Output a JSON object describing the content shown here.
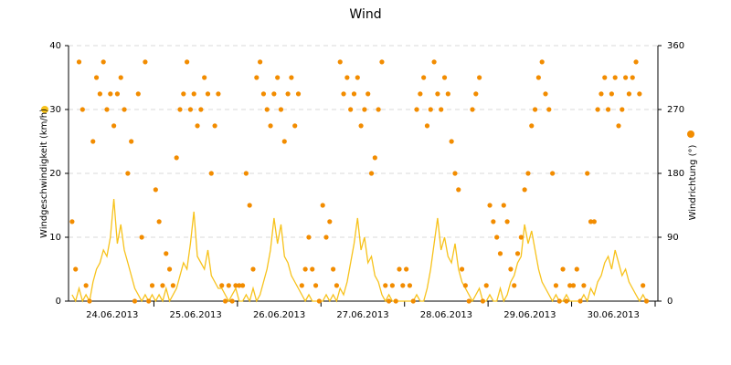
{
  "chart_data": {
    "type": "line-scatter",
    "title": "Wind",
    "categories": [
      "24.06.2013",
      "25.06.2013",
      "26.06.2013",
      "27.06.2013",
      "28.06.2013",
      "29.06.2013",
      "30.06.2013"
    ],
    "ylim": [
      0,
      40
    ],
    "yticks": [
      0,
      10,
      20,
      30,
      40
    ],
    "y2lim": [
      0,
      360
    ],
    "y2ticks": [
      0,
      90,
      180,
      270,
      360
    ],
    "grid": true,
    "series": [
      {
        "name": "Windgeschwindigkeit (km/h)",
        "color": "#f7c21b",
        "type": "line",
        "values": [
          [
            1,
            0,
            2,
            0,
            1,
            0,
            3,
            5,
            6,
            8,
            7,
            10,
            16,
            9,
            12,
            8,
            6,
            4,
            2,
            1,
            0,
            1,
            0,
            1
          ],
          [
            0,
            1,
            0,
            2,
            0,
            1,
            2,
            4,
            6,
            5,
            9,
            14,
            7,
            6,
            5,
            8,
            4,
            3,
            2,
            2,
            1,
            0,
            1,
            2
          ],
          [
            0,
            0,
            1,
            0,
            2,
            0,
            1,
            3,
            5,
            8,
            13,
            9,
            12,
            7,
            6,
            4,
            3,
            2,
            1,
            0,
            1,
            0,
            0,
            0
          ],
          [
            0,
            1,
            0,
            1,
            0,
            2,
            1,
            3,
            6,
            9,
            13,
            8,
            10,
            6,
            7,
            4,
            3,
            1,
            0,
            1,
            0,
            0,
            0,
            0
          ],
          [
            0,
            0,
            0,
            1,
            0,
            0,
            2,
            5,
            9,
            13,
            8,
            10,
            7,
            6,
            9,
            5,
            3,
            2,
            1,
            0,
            1,
            2,
            0,
            0
          ],
          [
            1,
            0,
            0,
            2,
            0,
            1,
            3,
            4,
            6,
            7,
            12,
            9,
            11,
            8,
            5,
            3,
            2,
            1,
            0,
            1,
            0,
            0,
            1,
            0
          ],
          [
            0,
            0,
            0,
            1,
            0,
            2,
            1,
            3,
            4,
            6,
            7,
            5,
            8,
            6,
            4,
            5,
            3,
            2,
            1,
            0,
            1,
            0,
            null,
            null
          ]
        ]
      },
      {
        "name": "Windrichtung (°)",
        "color": "#f28c00",
        "type": "scatter",
        "axis": "y2",
        "values": [
          [
            112,
            45,
            337,
            270,
            22,
            0,
            225,
            315,
            292,
            337,
            270,
            292,
            247,
            292,
            315,
            270,
            180,
            225,
            0,
            292,
            90,
            337,
            0,
            22
          ],
          [
            157,
            112,
            22,
            67,
            45,
            22,
            202,
            270,
            292,
            337,
            270,
            292,
            247,
            270,
            315,
            292,
            180,
            247,
            292,
            22,
            0,
            22,
            0,
            22
          ],
          [
            22,
            22,
            180,
            135,
            45,
            315,
            337,
            292,
            270,
            247,
            292,
            315,
            270,
            225,
            292,
            315,
            247,
            292,
            22,
            45,
            90,
            45,
            22,
            0
          ],
          [
            135,
            90,
            112,
            45,
            22,
            337,
            292,
            315,
            270,
            292,
            315,
            247,
            270,
            292,
            180,
            202,
            270,
            337,
            22,
            0,
            22,
            0,
            45,
            22
          ],
          [
            45,
            22,
            0,
            270,
            292,
            315,
            247,
            270,
            337,
            292,
            270,
            315,
            292,
            225,
            180,
            157,
            45,
            22,
            0,
            270,
            292,
            315,
            0,
            22
          ],
          [
            135,
            112,
            90,
            67,
            135,
            112,
            45,
            22,
            67,
            90,
            157,
            180,
            247,
            270,
            315,
            337,
            292,
            270,
            180,
            22,
            0,
            45,
            0,
            22
          ],
          [
            22,
            45,
            0,
            22,
            180,
            112,
            112,
            270,
            292,
            315,
            270,
            292,
            315,
            247,
            270,
            315,
            292,
            315,
            337,
            292,
            22,
            0,
            null,
            null
          ]
        ]
      }
    ]
  }
}
